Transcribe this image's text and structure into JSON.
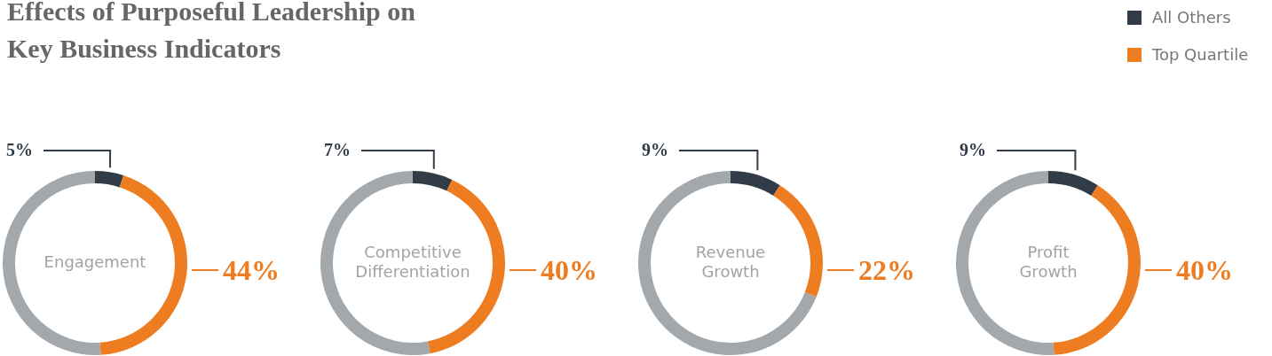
{
  "chart_data": [
    {
      "type": "other",
      "title": "Effects of Purposeful Leadership on\nKey Business Indicators"
    },
    {
      "type": "donut",
      "title": "Engagement",
      "categories": [
        "All Others",
        "Top Quartile",
        null
      ],
      "values": [
        5,
        44,
        51
      ],
      "value_labels": [
        "5%",
        "44%",
        null
      ],
      "colors": [
        "#323c47",
        "#ee7d22",
        "#a3a8ad"
      ],
      "legend": "top right"
    },
    {
      "type": "donut",
      "title": "Competitive\nDifferentiation",
      "categories": [
        null,
        null,
        null
      ],
      "values": [
        7,
        40,
        53
      ],
      "value_labels": [
        "7%",
        "40%",
        null
      ],
      "colors": [
        "#323c47",
        "#ee7d22",
        "#a3a8ad"
      ]
    },
    {
      "type": "donut",
      "title": "Revenue\nGrowth",
      "categories": [
        null,
        null,
        null
      ],
      "values": [
        9,
        22,
        69
      ],
      "value_labels": [
        "9%",
        "22%",
        null
      ],
      "colors": [
        "#323c47",
        "#ee7d22",
        "#a3a8ad"
      ]
    },
    {
      "type": "donut",
      "title": "Profit\nGrowth",
      "categories": [
        null,
        null,
        null
      ],
      "values": [
        9,
        40,
        51
      ],
      "value_labels": [
        "9%",
        "40%",
        null
      ],
      "colors": [
        "#323c47",
        "#ee7d22",
        "#a3a8ad"
      ]
    }
  ]
}
